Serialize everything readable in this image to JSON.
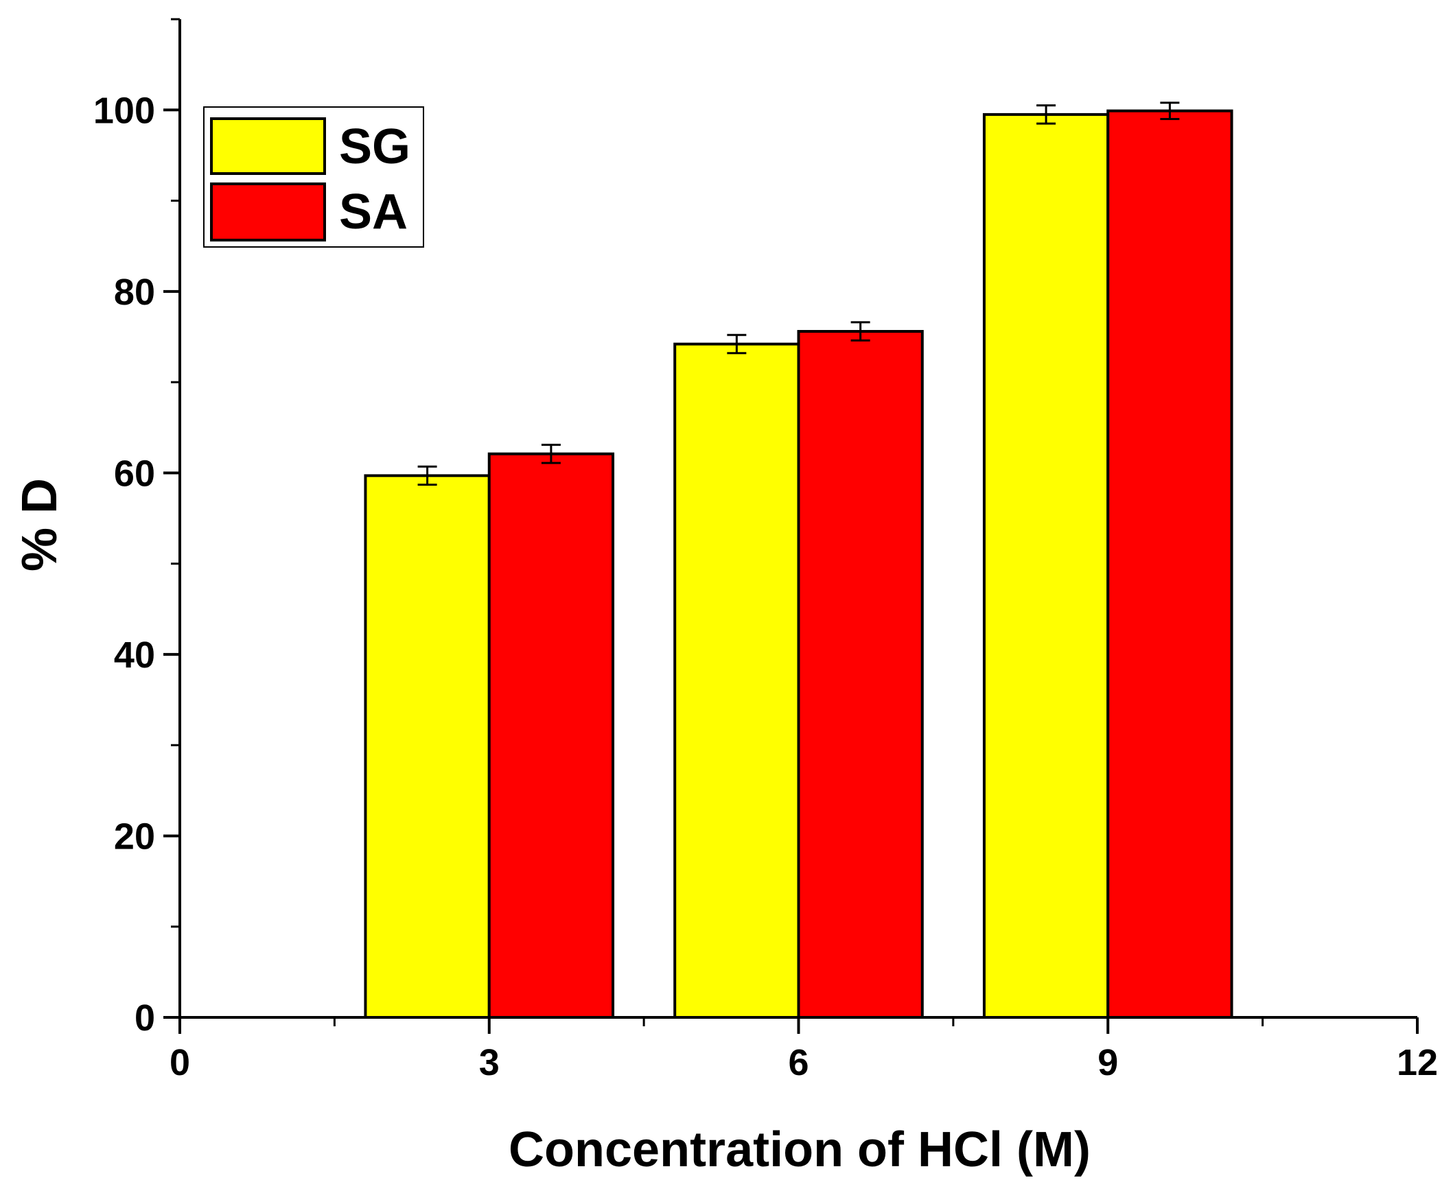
{
  "chart_data": {
    "type": "bar",
    "title": "",
    "xlabel": "Concentration of HCl (M)",
    "ylabel": "% D",
    "categories": [
      3,
      6,
      9
    ],
    "xlim": [
      0,
      12
    ],
    "ylim": [
      0,
      110
    ],
    "x_ticks": [
      0,
      3,
      6,
      9,
      12
    ],
    "x_minor_ticks": [
      1.5,
      4.5,
      7.5,
      10.5
    ],
    "y_ticks": [
      0,
      20,
      40,
      60,
      80,
      100
    ],
    "y_minor_ticks": [
      10,
      30,
      50,
      70,
      90,
      110
    ],
    "bar_width": 1.2,
    "series": [
      {
        "name": "SG",
        "color": "#FFFF00",
        "values": [
          59.7,
          74.2,
          99.5
        ],
        "errors": [
          1.0,
          1.0,
          1.0
        ]
      },
      {
        "name": "SA",
        "color": "#FF0000",
        "values": [
          62.1,
          75.6,
          99.9
        ],
        "errors": [
          1.0,
          1.0,
          0.9
        ]
      }
    ],
    "legend_position": "top-left",
    "grid": false
  }
}
